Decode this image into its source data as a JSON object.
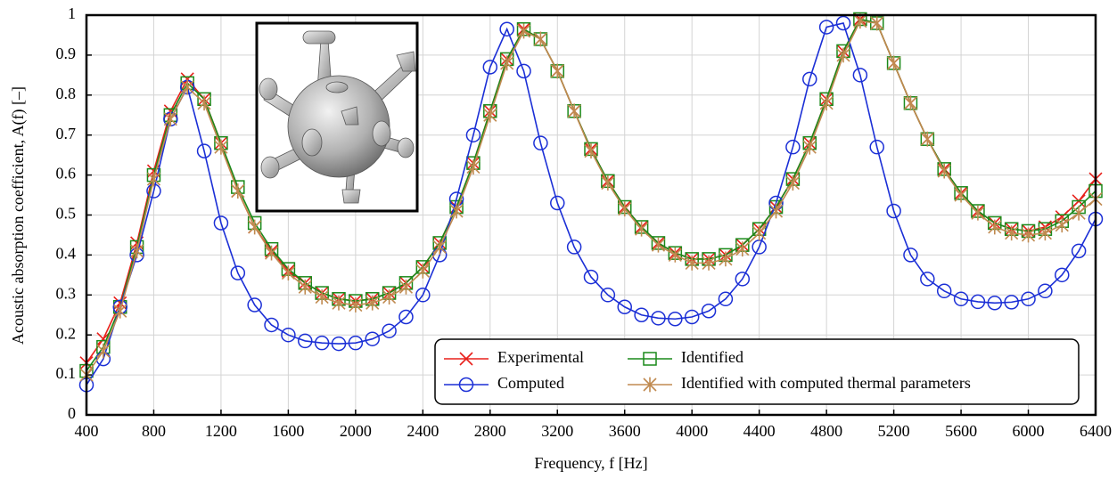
{
  "chart_data": {
    "type": "line",
    "x_label": "Frequency, f [Hz]",
    "y_label": "Acoustic absorption coefficient, A(f) [–]",
    "x": [
      400,
      500,
      600,
      700,
      800,
      900,
      1000,
      1100,
      1200,
      1300,
      1400,
      1500,
      1600,
      1700,
      1800,
      1900,
      2000,
      2100,
      2200,
      2300,
      2400,
      2500,
      2600,
      2700,
      2800,
      2900,
      3000,
      3100,
      3200,
      3300,
      3400,
      3500,
      3600,
      3700,
      3800,
      3900,
      4000,
      4100,
      4200,
      4300,
      4400,
      4500,
      4600,
      4700,
      4800,
      4900,
      5000,
      5100,
      5200,
      5300,
      5400,
      5500,
      5600,
      5700,
      5800,
      5900,
      6000,
      6100,
      6200,
      6300,
      6400
    ],
    "series": [
      {
        "name": "Experimental",
        "color": "#e8201b",
        "marker": "x",
        "values": [
          0.13,
          0.19,
          0.28,
          0.43,
          0.61,
          0.76,
          0.84,
          0.79,
          0.68,
          0.56,
          0.47,
          0.41,
          0.36,
          0.33,
          0.305,
          0.29,
          0.285,
          0.29,
          0.305,
          0.33,
          0.37,
          0.43,
          0.52,
          0.63,
          0.76,
          0.89,
          0.965,
          0.94,
          0.86,
          0.76,
          0.665,
          0.585,
          0.52,
          0.47,
          0.43,
          0.405,
          0.39,
          0.39,
          0.4,
          0.425,
          0.465,
          0.52,
          0.59,
          0.68,
          0.79,
          0.91,
          0.99,
          0.98,
          0.88,
          0.78,
          0.69,
          0.615,
          0.555,
          0.51,
          0.48,
          0.465,
          0.46,
          0.47,
          0.495,
          0.535,
          0.59
        ]
      },
      {
        "name": "Identified",
        "color": "#1a8a1a",
        "marker": "s",
        "values": [
          0.11,
          0.17,
          0.27,
          0.42,
          0.6,
          0.75,
          0.83,
          0.79,
          0.68,
          0.57,
          0.48,
          0.415,
          0.365,
          0.33,
          0.305,
          0.29,
          0.285,
          0.29,
          0.305,
          0.33,
          0.37,
          0.43,
          0.52,
          0.63,
          0.76,
          0.89,
          0.965,
          0.94,
          0.86,
          0.76,
          0.665,
          0.585,
          0.52,
          0.47,
          0.43,
          0.405,
          0.39,
          0.39,
          0.4,
          0.425,
          0.465,
          0.52,
          0.59,
          0.68,
          0.79,
          0.91,
          0.99,
          0.98,
          0.88,
          0.78,
          0.69,
          0.615,
          0.555,
          0.51,
          0.48,
          0.465,
          0.46,
          0.465,
          0.485,
          0.52,
          0.56
        ]
      },
      {
        "name": "Computed",
        "color": "#1b2fd6",
        "marker": "o",
        "values": [
          0.075,
          0.14,
          0.27,
          0.4,
          0.56,
          0.74,
          0.82,
          0.66,
          0.48,
          0.355,
          0.275,
          0.225,
          0.2,
          0.185,
          0.18,
          0.178,
          0.18,
          0.19,
          0.21,
          0.245,
          0.3,
          0.4,
          0.54,
          0.7,
          0.87,
          0.965,
          0.86,
          0.68,
          0.53,
          0.42,
          0.345,
          0.3,
          0.27,
          0.25,
          0.242,
          0.24,
          0.245,
          0.26,
          0.29,
          0.34,
          0.42,
          0.53,
          0.67,
          0.84,
          0.97,
          0.98,
          0.85,
          0.67,
          0.51,
          0.4,
          0.34,
          0.31,
          0.29,
          0.283,
          0.28,
          0.282,
          0.29,
          0.31,
          0.35,
          0.41,
          0.49
        ]
      },
      {
        "name": "Identified with computed thermal parameters",
        "color": "#c08a50",
        "marker": "*",
        "values": [
          0.1,
          0.16,
          0.26,
          0.41,
          0.59,
          0.74,
          0.82,
          0.78,
          0.67,
          0.56,
          0.47,
          0.405,
          0.355,
          0.32,
          0.295,
          0.28,
          0.275,
          0.28,
          0.295,
          0.32,
          0.36,
          0.42,
          0.51,
          0.62,
          0.75,
          0.88,
          0.96,
          0.94,
          0.86,
          0.76,
          0.66,
          0.58,
          0.515,
          0.465,
          0.425,
          0.4,
          0.38,
          0.38,
          0.39,
          0.415,
          0.455,
          0.51,
          0.58,
          0.67,
          0.78,
          0.9,
          0.985,
          0.98,
          0.88,
          0.78,
          0.69,
          0.61,
          0.55,
          0.505,
          0.47,
          0.455,
          0.45,
          0.455,
          0.475,
          0.505,
          0.54
        ]
      }
    ],
    "xlim": [
      400,
      6400
    ],
    "xticks": [
      400,
      800,
      1200,
      1600,
      2000,
      2400,
      2800,
      3200,
      3600,
      4000,
      4400,
      4800,
      5200,
      5600,
      6000,
      6400
    ],
    "ylim": [
      0,
      1
    ],
    "yticks": [
      0,
      0.1,
      0.2,
      0.3,
      0.4,
      0.5,
      0.6,
      0.7,
      0.8,
      0.9,
      1
    ],
    "grid": true,
    "legend": "lower right"
  }
}
